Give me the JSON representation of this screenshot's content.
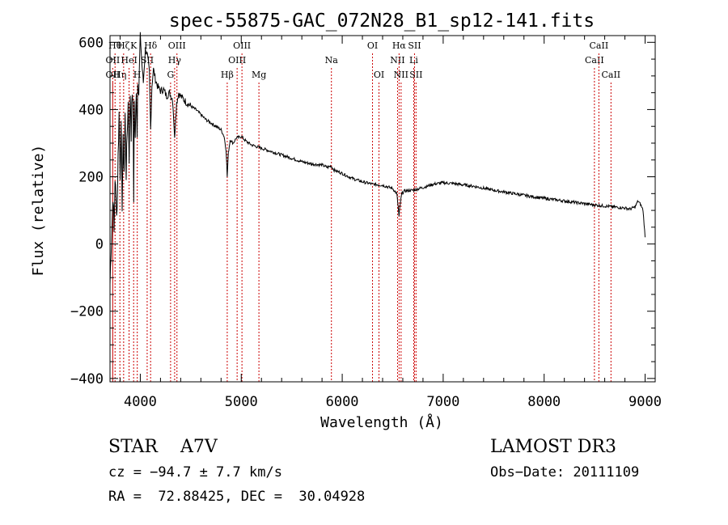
{
  "chart_data": {
    "type": "line",
    "title": "spec-55875-GAC_072N28_B1_sp12-141.fits",
    "xlabel": "Wavelength (Å)",
    "ylabel": "Flux (relative)",
    "xlim": [
      3700,
      9100
    ],
    "ylim": [
      -410,
      620
    ],
    "xticks": [
      4000,
      5000,
      6000,
      7000,
      8000,
      9000
    ],
    "xtick_labels": [
      "4000",
      "5000",
      "6000",
      "7000",
      "8000",
      "9000"
    ],
    "yticks": [
      -400,
      -200,
      0,
      200,
      400,
      600
    ],
    "ytick_labels": [
      "−400",
      "−200",
      "0",
      "200",
      "400",
      "600"
    ],
    "series": [
      {
        "name": "spectrum",
        "x": [
          3700,
          3710,
          3720,
          3730,
          3740,
          3750,
          3760,
          3770,
          3780,
          3790,
          3800,
          3810,
          3820,
          3830,
          3840,
          3850,
          3860,
          3870,
          3880,
          3890,
          3900,
          3910,
          3920,
          3930,
          3935,
          3940,
          3950,
          3960,
          3968,
          3975,
          3985,
          4000,
          4015,
          4030,
          4050,
          4070,
          4090,
          4102,
          4115,
          4130,
          4150,
          4170,
          4200,
          4230,
          4260,
          4290,
          4320,
          4330,
          4340,
          4350,
          4360,
          4380,
          4400,
          4430,
          4460,
          4500,
          4550,
          4600,
          4650,
          4700,
          4750,
          4800,
          4830,
          4850,
          4861,
          4872,
          4890,
          4920,
          4950,
          5000,
          5050,
          5100,
          5150,
          5200,
          5300,
          5400,
          5500,
          5600,
          5700,
          5800,
          5850,
          5890,
          5920,
          6000,
          6100,
          6200,
          6300,
          6400,
          6500,
          6540,
          6555,
          6563,
          6571,
          6590,
          6620,
          6700,
          6800,
          6900,
          7000,
          7100,
          7200,
          7300,
          7400,
          7500,
          7600,
          7700,
          7800,
          7900,
          8000,
          8100,
          8200,
          8300,
          8400,
          8500,
          8600,
          8700,
          8800,
          8850,
          8900,
          8930,
          8960,
          8980,
          9000
        ],
        "values": [
          -120,
          -20,
          60,
          150,
          30,
          200,
          120,
          100,
          260,
          390,
          210,
          340,
          120,
          300,
          220,
          380,
          210,
          330,
          420,
          260,
          450,
          330,
          460,
          350,
          140,
          420,
          300,
          470,
          320,
          500,
          450,
          620,
          540,
          480,
          580,
          560,
          510,
          340,
          470,
          520,
          490,
          470,
          455,
          460,
          440,
          450,
          430,
          380,
          310,
          380,
          420,
          450,
          440,
          430,
          420,
          410,
          400,
          385,
          370,
          360,
          350,
          340,
          320,
          280,
          200,
          270,
          310,
          300,
          315,
          320,
          305,
          295,
          290,
          285,
          275,
          265,
          255,
          245,
          238,
          235,
          228,
          232,
          220,
          210,
          195,
          185,
          178,
          175,
          165,
          150,
          110,
          80,
          110,
          150,
          158,
          160,
          168,
          178,
          182,
          180,
          176,
          172,
          166,
          160,
          155,
          150,
          145,
          140,
          136,
          132,
          128,
          124,
          120,
          116,
          113,
          110,
          107,
          104,
          110,
          128,
          115,
          100,
          20
        ]
      }
    ],
    "line_markers": [
      {
        "wave": 3750,
        "label": "Hθ",
        "row": 1
      },
      {
        "wave": 3727,
        "label": "OII",
        "row": 2
      },
      {
        "wave": 3727,
        "label": "OII",
        "row": 3
      },
      {
        "wave": 3798,
        "label": "Hη",
        "row": 3
      },
      {
        "wave": 3835,
        "label": "Hζ",
        "row": 1
      },
      {
        "wave": 3889,
        "label": "HeI",
        "row": 2
      },
      {
        "wave": 3934,
        "label": "K",
        "row": 1
      },
      {
        "wave": 3970,
        "label": "H",
        "row": 3
      },
      {
        "wave": 4068,
        "label": "SII",
        "row": 2
      },
      {
        "wave": 4102,
        "label": "Hδ",
        "row": 1
      },
      {
        "wave": 4300,
        "label": "G",
        "row": 3
      },
      {
        "wave": 4340,
        "label": "Hγ",
        "row": 2
      },
      {
        "wave": 4363,
        "label": "OIII",
        "row": 1
      },
      {
        "wave": 4861,
        "label": "Hβ",
        "row": 3
      },
      {
        "wave": 4959,
        "label": "OIII",
        "row": 2
      },
      {
        "wave": 5007,
        "label": "OIII",
        "row": 1
      },
      {
        "wave": 5175,
        "label": "Mg",
        "row": 3
      },
      {
        "wave": 5893,
        "label": "Na",
        "row": 2
      },
      {
        "wave": 6300,
        "label": "OI",
        "row": 1
      },
      {
        "wave": 6364,
        "label": "OI",
        "row": 3
      },
      {
        "wave": 6548,
        "label": "NII",
        "row": 2
      },
      {
        "wave": 6563,
        "label": "Hα",
        "row": 1
      },
      {
        "wave": 6583,
        "label": "NII",
        "row": 3
      },
      {
        "wave": 6708,
        "label": "Li",
        "row": 2
      },
      {
        "wave": 6716,
        "label": "SII",
        "row": 1
      },
      {
        "wave": 6731,
        "label": "SII",
        "row": 3
      },
      {
        "wave": 8498,
        "label": "CaII",
        "row": 2
      },
      {
        "wave": 8542,
        "label": "CaII",
        "row": 1
      },
      {
        "wave": 8662,
        "label": "CaII",
        "row": 3
      }
    ]
  },
  "info": {
    "class_line": "STAR    A7V",
    "survey": "LAMOST DR3",
    "cz": "cz = −94.7 ± 7.7 km/s",
    "obs_date": "Obs−Date: 20111109",
    "radec": "RA =  72.88425, DEC =  30.04928"
  }
}
